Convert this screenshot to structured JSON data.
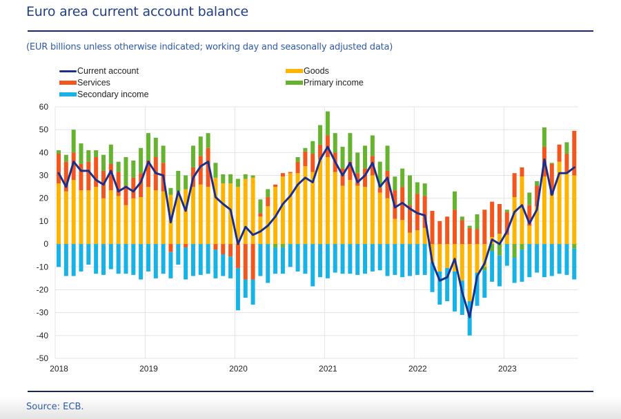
{
  "header": {
    "title": "Euro area current account balance",
    "subtitle": "(EUR billions unless otherwise indicated; working day and seasonally adjusted data)"
  },
  "footer": {
    "source": "Source: ECB."
  },
  "colors": {
    "current_account": "#1a2e8c",
    "goods": "#ffb400",
    "services": "#f2561d",
    "primary_income": "#65b32e",
    "secondary_income": "#17b2e6",
    "grid": "#e3e3e3",
    "title": "#1f3e8a",
    "rule": "#17275f"
  },
  "chart_data": {
    "type": "bar",
    "stacked": true,
    "title": "Euro area current account balance",
    "subtitle": "(EUR billions unless otherwise indicated; working day and seasonally adjusted data)",
    "xlabel": "",
    "ylabel": "",
    "ylim": [
      -50,
      60
    ],
    "yticks": [
      60,
      50,
      40,
      30,
      20,
      10,
      0,
      -10,
      -20,
      -30,
      -40,
      -50
    ],
    "xticks": [
      "2018",
      "2019",
      "2020",
      "2021",
      "2022",
      "2023"
    ],
    "grid": true,
    "legend_position": "top",
    "legend": [
      {
        "key": "current_account",
        "label": "Current account",
        "kind": "line"
      },
      {
        "key": "goods",
        "label": "Goods",
        "kind": "bar"
      },
      {
        "key": "services",
        "label": "Services",
        "kind": "bar"
      },
      {
        "key": "primary_income",
        "label": "Primary income",
        "kind": "bar"
      },
      {
        "key": "secondary_income",
        "label": "Secondary income",
        "kind": "bar"
      }
    ],
    "x": [
      "2018-01",
      "2018-02",
      "2018-03",
      "2018-04",
      "2018-05",
      "2018-06",
      "2018-07",
      "2018-08",
      "2018-09",
      "2018-10",
      "2018-11",
      "2018-12",
      "2019-01",
      "2019-02",
      "2019-03",
      "2019-04",
      "2019-05",
      "2019-06",
      "2019-07",
      "2019-08",
      "2019-09",
      "2019-10",
      "2019-11",
      "2019-12",
      "2020-01",
      "2020-02",
      "2020-03",
      "2020-04",
      "2020-05",
      "2020-06",
      "2020-07",
      "2020-08",
      "2020-09",
      "2020-10",
      "2020-11",
      "2020-12",
      "2021-01",
      "2021-02",
      "2021-03",
      "2021-04",
      "2021-05",
      "2021-06",
      "2021-07",
      "2021-08",
      "2021-09",
      "2021-10",
      "2021-11",
      "2021-12",
      "2022-01",
      "2022-02",
      "2022-03",
      "2022-04",
      "2022-05",
      "2022-06",
      "2022-07",
      "2022-08",
      "2022-09",
      "2022-10",
      "2022-11",
      "2022-12",
      "2023-01",
      "2023-02",
      "2023-03",
      "2023-04",
      "2023-05",
      "2023-06",
      "2023-07",
      "2023-08",
      "2023-09",
      "2023-10"
    ],
    "series": [
      {
        "key": "goods",
        "name": "Goods",
        "type": "bar",
        "values": [
          26.5,
          23,
          28,
          23.5,
          23.5,
          25,
          20,
          23.5,
          21,
          17,
          20,
          20.5,
          25,
          23.5,
          23,
          21.5,
          23,
          24,
          25,
          26,
          25,
          29,
          26.5,
          26.5,
          25,
          28.5,
          29,
          12,
          16.5,
          25,
          29.5,
          31,
          31,
          34,
          31.5,
          37,
          38,
          31.5,
          25.5,
          28,
          25.5,
          25,
          30,
          22.5,
          20,
          11,
          10.5,
          5,
          6,
          7,
          -8,
          -12,
          -10.5,
          -12,
          -16,
          -25,
          -12.5,
          -10,
          3,
          4.5,
          4,
          20.5,
          29.5,
          8,
          16.5,
          29.5,
          21.5,
          36,
          31,
          30
        ]
      },
      {
        "key": "services",
        "name": "Services",
        "type": "bar",
        "values": [
          13,
          13,
          12,
          11.5,
          12.5,
          13,
          12,
          11.5,
          10.5,
          8.5,
          9,
          10.5,
          11.5,
          14.5,
          12.5,
          -3.5,
          0,
          -1.5,
          8.5,
          12.5,
          17,
          -2.5,
          -4.5,
          -5.5,
          -10.5,
          -15.5,
          -15.5,
          1.5,
          4,
          1,
          1.5,
          0.5,
          5,
          6.5,
          8,
          6.5,
          9.5,
          8.5,
          7.5,
          8,
          5.5,
          8,
          8.5,
          2,
          12,
          12.5,
          14.5,
          12,
          16,
          14,
          14.5,
          10,
          12,
          15,
          10.5,
          7,
          6.5,
          15,
          15.5,
          13,
          10,
          10.5,
          4,
          9,
          9,
          13,
          13.5,
          7.5,
          8.5,
          19.5
        ]
      },
      {
        "key": "primary_income",
        "name": "Primary income",
        "type": "bar",
        "values": [
          1.5,
          3,
          10,
          9,
          5,
          3,
          7,
          8.5,
          4.5,
          12.5,
          7.5,
          11,
          12,
          8.5,
          7.5,
          3,
          9,
          6,
          9.5,
          8.5,
          6.5,
          6.5,
          4,
          4,
          3.5,
          2,
          1,
          6,
          3.5,
          -1.5,
          -1.5,
          0,
          2,
          1.5,
          5.5,
          8.5,
          10.5,
          8.5,
          9.5,
          12.5,
          9,
          10,
          9,
          11.5,
          11,
          6,
          8,
          13,
          5,
          5.5,
          0,
          0,
          0,
          8,
          1.5,
          1,
          6.5,
          -1.5,
          -3,
          -5,
          1,
          -6,
          -2.5,
          5.5,
          2,
          8.5,
          0.5,
          0,
          5,
          -2
        ]
      },
      {
        "key": "secondary_income",
        "name": "Secondary income",
        "type": "bar",
        "values": [
          -10,
          -14,
          -14,
          -12,
          -9,
          -13,
          -13.5,
          -11,
          -13,
          -13,
          -13.5,
          -15.5,
          -12,
          -15,
          -13,
          -11.5,
          -9,
          -14,
          -14,
          -13.5,
          -13,
          -12.5,
          -9.5,
          -9.5,
          -18.5,
          -8,
          -11,
          -14,
          -17,
          -11.5,
          -11.5,
          -10,
          -12,
          -13,
          -18.5,
          -14.5,
          -15,
          -12.5,
          -13,
          -13,
          -13.5,
          -13,
          -12,
          -11.5,
          -14,
          -13.5,
          -14.5,
          -14,
          -13.5,
          -13.5,
          -13,
          -14.5,
          -14.5,
          -17.5,
          -15,
          -15,
          -14.5,
          -12,
          -13.5,
          -13.5,
          -9.5,
          -11,
          -14,
          -14.5,
          -12.5,
          -14.5,
          -14,
          -13,
          -13.5,
          -13.5
        ]
      },
      {
        "key": "current_account",
        "name": "Current account",
        "type": "line",
        "values": [
          31,
          25,
          36,
          32,
          32,
          28,
          26,
          32,
          23,
          25,
          23,
          27,
          36,
          31,
          30,
          9.5,
          23,
          14.5,
          29,
          34,
          36,
          20.5,
          17.5,
          15,
          0,
          7.5,
          4,
          5.5,
          8,
          12,
          17.5,
          21,
          26,
          29,
          27,
          37,
          42.5,
          36,
          30,
          35.5,
          27,
          30,
          35.5,
          25,
          29,
          16,
          18,
          15.5,
          13.5,
          12.5,
          -8,
          -16,
          -14.5,
          -6.5,
          -21,
          -32,
          -14,
          -8.5,
          2,
          0,
          5.5,
          14,
          17,
          9,
          15,
          37,
          21.5,
          31,
          31,
          33.5
        ]
      }
    ]
  }
}
